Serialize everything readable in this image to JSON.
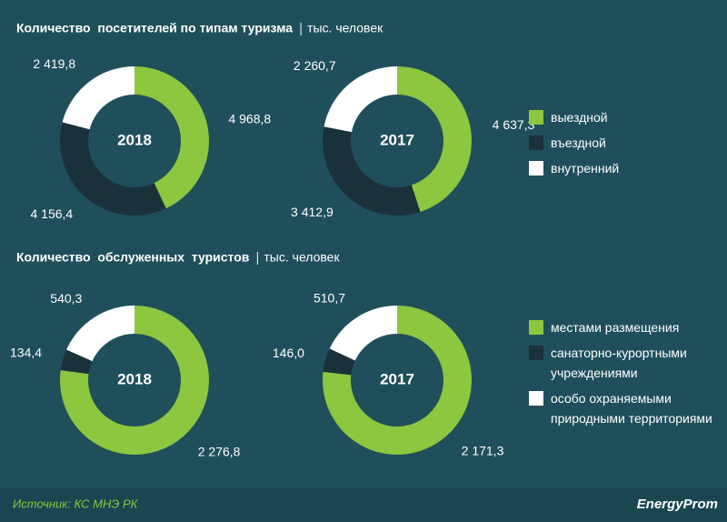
{
  "chart_data": [
    {
      "type": "donut",
      "title": "Количество  посетителей по типам туризма",
      "unit": "тыс. человек",
      "categories": [
        "2018",
        "2017"
      ],
      "series": [
        {
          "name": "выездной",
          "color": "#8dc63f",
          "values": [
            4968.8,
            4637.3
          ],
          "value_labels": [
            "4 968,8",
            "4 637,3"
          ]
        },
        {
          "name": "въездной",
          "color": "#1b313a",
          "values": [
            4156.4,
            3412.9
          ],
          "value_labels": [
            "4 156,4",
            "3 412,9"
          ]
        },
        {
          "name": "внутренний",
          "color": "#ffffff",
          "values": [
            2419.8,
            2260.7
          ],
          "value_labels": [
            "2 419,8",
            "2 260,7"
          ]
        }
      ]
    },
    {
      "type": "donut",
      "title": "Количество  обслуженных  туристов",
      "unit": "тыс. человек",
      "categories": [
        "2018",
        "2017"
      ],
      "series": [
        {
          "name": "местами размещения",
          "color": "#8dc63f",
          "values": [
            2276.8,
            2171.3
          ],
          "value_labels": [
            "2 276,8",
            "2 171,3"
          ]
        },
        {
          "name": "санаторно-курортными учреждениями",
          "color": "#1b313a",
          "values": [
            134.4,
            146.0
          ],
          "value_labels": [
            "134,4",
            "146,0"
          ]
        },
        {
          "name": "особо охраняемыми природными территориями",
          "color": "#ffffff",
          "values": [
            540.3,
            510.7
          ],
          "value_labels": [
            "540,3",
            "510,7"
          ]
        }
      ]
    }
  ],
  "footer": {
    "source": "Источник: КС МНЭ РК",
    "brand": "EnergyProm"
  }
}
